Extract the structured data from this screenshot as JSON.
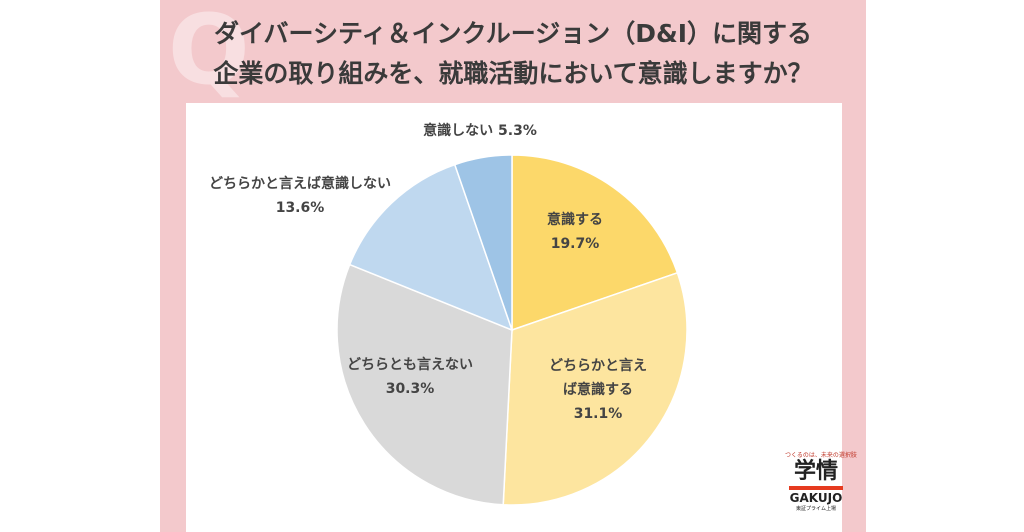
{
  "chart_data": {
    "type": "pie",
    "title": [
      "ダイバーシティ＆インクルージョン（D&I）に関する",
      "企業の取り組みを、就職活動において意識しますか？"
    ],
    "categories": [
      "意識する",
      "どちらかと言えば意識する",
      "どちらとも言えない",
      "どちらかと言えば意識しない",
      "意識しない"
    ],
    "values": [
      19.7,
      31.1,
      30.3,
      13.6,
      5.3
    ],
    "value_labels": [
      "19.7%",
      "31.1%",
      "30.3%",
      "13.6%",
      "5.3%"
    ],
    "colors": [
      "#fcd86a",
      "#fde59f",
      "#d9d9d9",
      "#bfd8ef",
      "#9ec4e6"
    ]
  },
  "logo": {
    "tagline": "つくるのは、未来の選択肢",
    "name": "学情",
    "name_en": "GAKUJO",
    "note": "東証プライム上場"
  }
}
